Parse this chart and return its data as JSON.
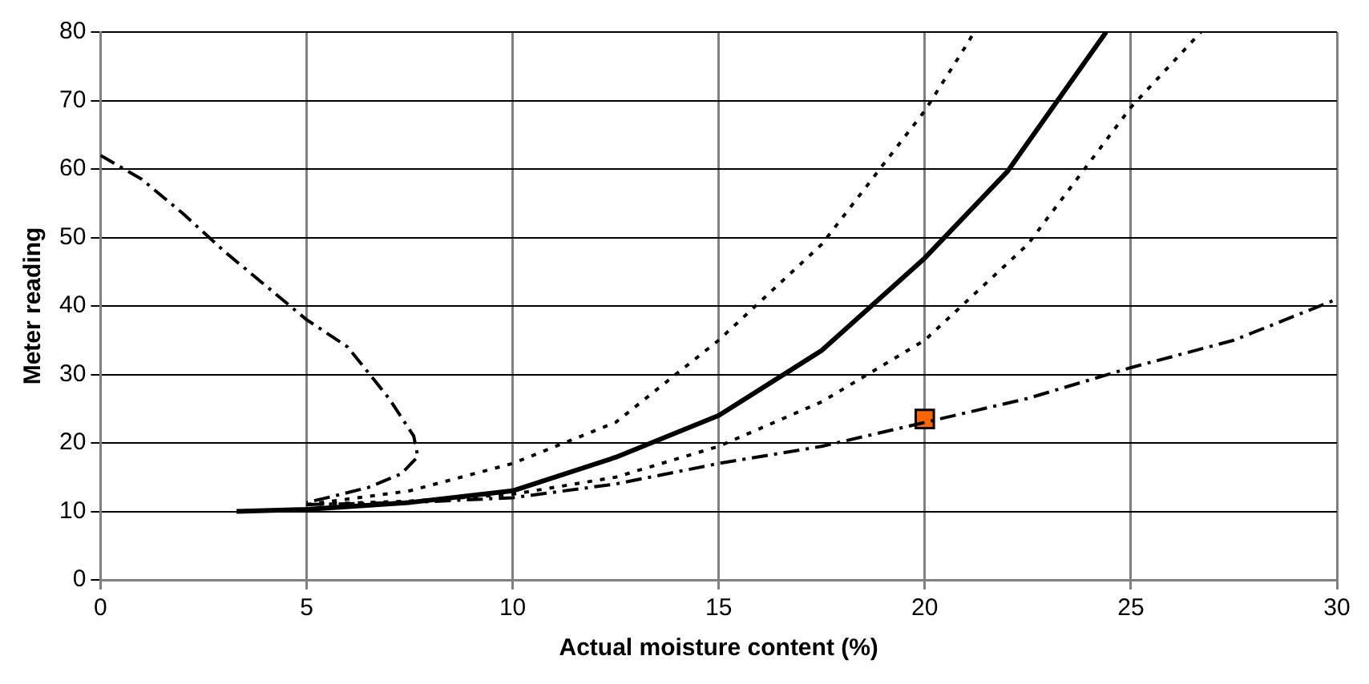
{
  "chart_data": {
    "type": "line",
    "xlabel": "Actual moisture content (%)",
    "ylabel": "Meter reading",
    "xlim": [
      0,
      30
    ],
    "xticks": [
      0,
      5,
      10,
      15,
      20,
      25,
      30
    ],
    "ylim": [
      0,
      80
    ],
    "yticks": [
      0,
      10,
      20,
      30,
      40,
      50,
      60,
      70,
      80
    ],
    "grid": true,
    "legend": false,
    "series": [
      {
        "color": "#000000",
        "line_style": "solid",
        "marker": "none",
        "x": [
          3.3,
          5,
          7.5,
          10,
          12.5,
          15,
          17.5,
          20,
          22,
          24.4
        ],
        "values": [
          10,
          10.3,
          11.3,
          13,
          17.9,
          24,
          33.5,
          47,
          59.6,
          80
        ]
      },
      {
        "color": "#000000",
        "line_style": "dotted",
        "marker": "none",
        "x": [
          5,
          7.5,
          10,
          12.5,
          15,
          17.5,
          20,
          21,
          21.2
        ],
        "values": [
          11,
          13,
          17,
          23,
          35,
          49,
          68.5,
          78,
          80
        ]
      },
      {
        "color": "#000000",
        "line_style": "dotted",
        "marker": "none",
        "x": [
          5,
          7.5,
          10,
          12.5,
          15,
          17.5,
          20,
          22.5,
          25,
          26.7
        ],
        "values": [
          11,
          11.5,
          12.5,
          15,
          19.5,
          26,
          35,
          49,
          69,
          80
        ]
      },
      {
        "color": "#000000",
        "line_style": "dashed",
        "marker": "none",
        "x": [
          5,
          7.5,
          10,
          12.5,
          15,
          17.5,
          20,
          22.5,
          25,
          27.5,
          30
        ],
        "values": [
          11,
          11.3,
          12,
          14,
          17,
          19.5,
          23,
          26.5,
          31,
          35,
          41
        ]
      },
      {
        "color": "#000000",
        "line_style": "dashed",
        "marker": "none",
        "x": [
          0,
          1,
          2,
          3,
          4,
          5,
          6,
          7,
          7.6,
          7.7,
          7.3,
          6.5,
          5.5,
          5
        ],
        "values": [
          62,
          58.5,
          53.5,
          48,
          43,
          38,
          34,
          26.5,
          21,
          18,
          15.5,
          13.5,
          12,
          11.3
        ]
      },
      {
        "type": "scatter",
        "color": "#ff6600",
        "marker": "square",
        "x": [
          20
        ],
        "values": [
          23.5
        ]
      }
    ]
  }
}
